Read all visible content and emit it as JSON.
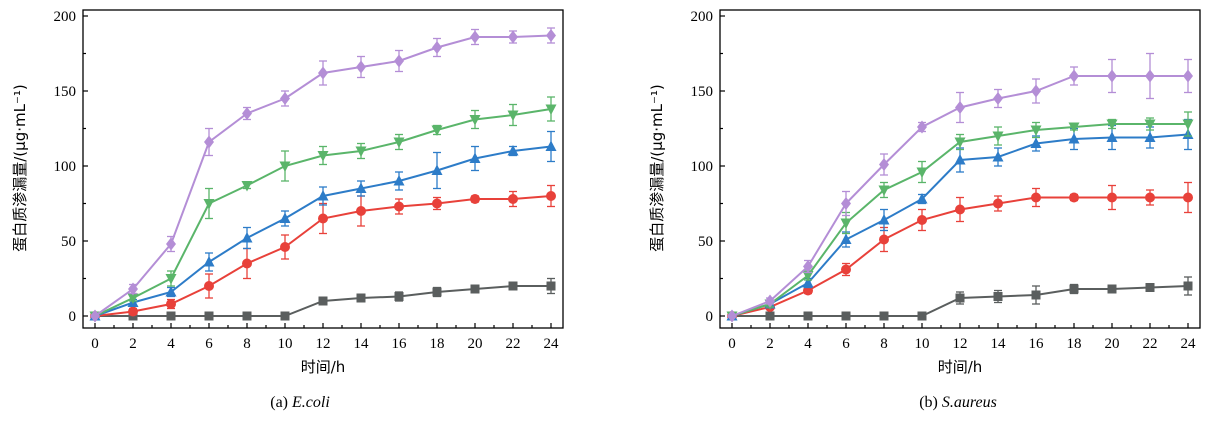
{
  "chart_data": [
    {
      "type": "line",
      "caption_prefix": "(a) ",
      "caption_organism": "E.coli",
      "xlabel": "时间/h",
      "ylabel": "蛋白质渗漏量/(μg·mL⁻¹)",
      "xlim": [
        0,
        24
      ],
      "ylim": [
        0,
        200
      ],
      "x_ticks": [
        "0",
        "2",
        "4",
        "6",
        "8",
        "10",
        "12",
        "14",
        "16",
        "18",
        "20",
        "22",
        "24"
      ],
      "y_ticks": [
        "0",
        "50",
        "100",
        "150",
        "200"
      ],
      "x": [
        0,
        2,
        4,
        6,
        8,
        10,
        12,
        14,
        16,
        18,
        20,
        22,
        24
      ],
      "series": [
        {
          "marker": "square",
          "color": "#5a5e5e",
          "values": [
            0,
            0,
            0,
            0,
            0,
            0,
            10,
            12,
            13,
            16,
            18,
            20,
            20
          ],
          "errors": [
            1,
            1,
            1,
            1,
            1,
            1,
            2,
            2,
            3,
            3,
            2,
            2,
            5
          ]
        },
        {
          "marker": "circle",
          "color": "#e8413a",
          "values": [
            0,
            3,
            8,
            20,
            35,
            46,
            65,
            70,
            73,
            75,
            78,
            78,
            80
          ],
          "errors": [
            1,
            2,
            3,
            8,
            10,
            8,
            10,
            10,
            5,
            4,
            2,
            5,
            7
          ]
        },
        {
          "marker": "triangle",
          "color": "#2d7cc8",
          "values": [
            0,
            9,
            16,
            36,
            52,
            65,
            80,
            85,
            90,
            97,
            105,
            110,
            113
          ],
          "errors": [
            1,
            2,
            3,
            6,
            7,
            5,
            6,
            5,
            6,
            12,
            8,
            3,
            10
          ]
        },
        {
          "marker": "triangle-down",
          "color": "#5ab56a",
          "values": [
            0,
            12,
            25,
            75,
            87,
            100,
            107,
            110,
            116,
            124,
            131,
            134,
            138
          ],
          "errors": [
            1,
            2,
            5,
            10,
            2,
            10,
            6,
            5,
            5,
            3,
            6,
            7,
            8
          ]
        },
        {
          "marker": "diamond",
          "color": "#b48ed6",
          "values": [
            0,
            18,
            48,
            116,
            135,
            145,
            162,
            166,
            170,
            179,
            186,
            186,
            187
          ],
          "errors": [
            1,
            3,
            5,
            9,
            4,
            5,
            8,
            7,
            7,
            6,
            5,
            4,
            5
          ]
        }
      ]
    },
    {
      "type": "line",
      "caption_prefix": "(b) ",
      "caption_organism": "S.aureus",
      "xlabel": "时间/h",
      "ylabel": "蛋白质渗漏量/(μg·mL⁻¹)",
      "xlim": [
        0,
        24
      ],
      "ylim": [
        0,
        200
      ],
      "x_ticks": [
        "0",
        "2",
        "4",
        "6",
        "8",
        "10",
        "12",
        "14",
        "16",
        "18",
        "20",
        "22",
        "24"
      ],
      "y_ticks": [
        "0",
        "50",
        "100",
        "150",
        "200"
      ],
      "x": [
        0,
        2,
        4,
        6,
        8,
        10,
        12,
        14,
        16,
        18,
        20,
        22,
        24
      ],
      "series": [
        {
          "marker": "square",
          "color": "#5a5e5e",
          "values": [
            0,
            0,
            0,
            0,
            0,
            0,
            12,
            13,
            14,
            18,
            18,
            19,
            20
          ],
          "errors": [
            1,
            1,
            1,
            1,
            1,
            1,
            4,
            4,
            6,
            3,
            2,
            2,
            6
          ]
        },
        {
          "marker": "circle",
          "color": "#e8413a",
          "values": [
            0,
            6,
            17,
            31,
            51,
            64,
            71,
            75,
            79,
            79,
            79,
            79,
            79
          ],
          "errors": [
            1,
            1,
            2,
            4,
            8,
            7,
            8,
            5,
            6,
            2,
            8,
            5,
            10
          ]
        },
        {
          "marker": "triangle",
          "color": "#2d7cc8",
          "values": [
            0,
            8,
            22,
            51,
            64,
            78,
            104,
            106,
            115,
            118,
            119,
            119,
            121
          ],
          "errors": [
            1,
            2,
            3,
            5,
            7,
            3,
            8,
            6,
            5,
            7,
            8,
            7,
            10
          ]
        },
        {
          "marker": "triangle-down",
          "color": "#5ab56a",
          "values": [
            0,
            8,
            27,
            62,
            84,
            96,
            116,
            120,
            124,
            126,
            128,
            128,
            128
          ],
          "errors": [
            1,
            2,
            3,
            7,
            5,
            7,
            5,
            6,
            5,
            2,
            3,
            4,
            8
          ]
        },
        {
          "marker": "diamond",
          "color": "#b48ed6",
          "values": [
            0,
            10,
            33,
            75,
            101,
            126,
            139,
            145,
            150,
            160,
            160,
            160,
            160
          ],
          "errors": [
            1,
            2,
            4,
            8,
            7,
            3,
            10,
            6,
            8,
            6,
            11,
            15,
            11
          ]
        }
      ]
    }
  ]
}
